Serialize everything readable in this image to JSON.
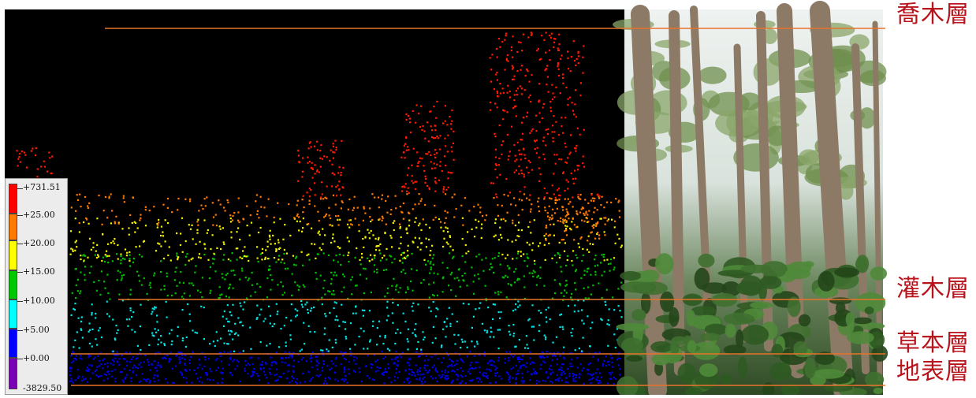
{
  "legend": {
    "entries": [
      {
        "label": "+731.51",
        "color": "#ff0000"
      },
      {
        "label": "+25.00",
        "color": "#ff7a00"
      },
      {
        "label": "+20.00",
        "color": "#ffff00"
      },
      {
        "label": "+15.00",
        "color": "#00c800"
      },
      {
        "label": "+10.00",
        "color": "#00ffff"
      },
      {
        "label": "+5.00",
        "color": "#0000ff"
      },
      {
        "label": "+0.00",
        "color": "#7a00b4"
      },
      {
        "label": "-3829.50",
        "color": "#7a00b4"
      }
    ]
  },
  "layers": {
    "canopy": "喬木層",
    "shrub": "灌木層",
    "herb": "草本層",
    "ground": "地表層"
  },
  "colors": {
    "background_scan": "#000000",
    "guide_line": "#e8732a",
    "label_text": "#b8141c"
  }
}
